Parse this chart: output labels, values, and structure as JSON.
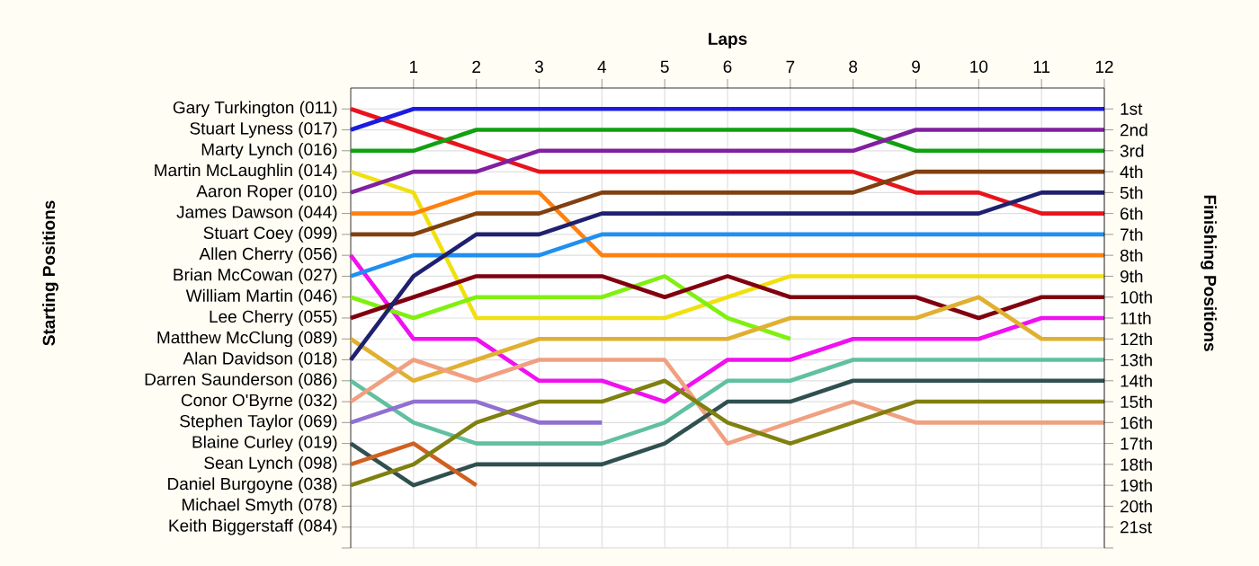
{
  "chart_data": {
    "type": "line",
    "xlabel": "Laps",
    "ylabel": "Finishing Positions",
    "xlim": [
      0,
      12
    ],
    "xticks": [
      1,
      2,
      3,
      4,
      5,
      6,
      7,
      8,
      9,
      10,
      11,
      12
    ],
    "ylim": [
      22,
      0
    ],
    "yticks": [
      {
        "value": 1,
        "label": "1st"
      },
      {
        "value": 2,
        "label": "2nd"
      },
      {
        "value": 3,
        "label": "3rd"
      },
      {
        "value": 4,
        "label": "4th"
      },
      {
        "value": 5,
        "label": "5th"
      },
      {
        "value": 6,
        "label": "6th"
      },
      {
        "value": 7,
        "label": "7th"
      },
      {
        "value": 8,
        "label": "8th"
      },
      {
        "value": 9,
        "label": "9th"
      },
      {
        "value": 10,
        "label": "10th"
      },
      {
        "value": 11,
        "label": "11th"
      },
      {
        "value": 12,
        "label": "12th"
      },
      {
        "value": 13,
        "label": "13th"
      },
      {
        "value": 14,
        "label": "14th"
      },
      {
        "value": 15,
        "label": "15th"
      },
      {
        "value": 16,
        "label": "16th"
      },
      {
        "value": 17,
        "label": "17th"
      },
      {
        "value": 18,
        "label": "18th"
      },
      {
        "value": 19,
        "label": "19th"
      },
      {
        "value": 20,
        "label": "20th"
      },
      {
        "value": 21,
        "label": "21st"
      },
      {
        "value": 22,
        "label": null
      }
    ],
    "x": [
      0,
      1,
      2,
      3,
      4,
      5,
      6,
      7,
      8,
      9,
      10,
      11,
      12
    ],
    "grid": true,
    "marker": "none",
    "line_style": "solid",
    "annotations": [
      "Starting Positions",
      "Michael Smyth (078)",
      "Keith Biggerstaff (084)"
    ],
    "series": [
      {
        "name": "Gary Turkington (011)",
        "color": "#e8141c",
        "values": [
          1,
          2,
          3,
          4,
          4,
          4,
          4,
          4,
          4,
          5,
          5,
          6,
          6
        ]
      },
      {
        "name": "Stuart Lyness (017)",
        "color": "#1c1ce0",
        "values": [
          2,
          1,
          1,
          1,
          1,
          1,
          1,
          1,
          1,
          1,
          1,
          1,
          1
        ]
      },
      {
        "name": "Marty Lynch (016)",
        "color": "#10a010",
        "values": [
          3,
          3,
          2,
          2,
          2,
          2,
          2,
          2,
          2,
          3,
          3,
          3,
          3
        ]
      },
      {
        "name": "Martin McLaughlin (014)",
        "color": "#f0e010",
        "values": [
          4,
          5,
          11,
          11,
          11,
          11,
          10,
          9,
          9,
          9,
          9,
          9,
          9
        ]
      },
      {
        "name": "Aaron Roper (010)",
        "color": "#8020a0",
        "values": [
          5,
          4,
          4,
          3,
          3,
          3,
          3,
          3,
          3,
          2,
          2,
          2,
          2
        ]
      },
      {
        "name": "James Dawson (044)",
        "color": "#ff8010",
        "values": [
          6,
          6,
          5,
          5,
          8,
          8,
          8,
          8,
          8,
          8,
          8,
          8,
          8
        ]
      },
      {
        "name": "Stuart Coey (099)",
        "color": "#804010",
        "values": [
          7,
          7,
          6,
          6,
          5,
          5,
          5,
          5,
          5,
          4,
          4,
          4,
          4
        ]
      },
      {
        "name": "Allen Cherry (056)",
        "color": "#f010f0",
        "values": [
          8,
          12,
          12,
          14,
          14,
          15,
          13,
          13,
          12,
          12,
          12,
          11,
          11
        ]
      },
      {
        "name": "Brian McCowan (027)",
        "color": "#2090f0",
        "values": [
          9,
          8,
          8,
          8,
          7,
          7,
          7,
          7,
          7,
          7,
          7,
          7,
          7
        ]
      },
      {
        "name": "William Martin (046)",
        "color": "#80f010",
        "values": [
          10,
          11,
          10,
          10,
          10,
          9,
          11,
          12,
          null,
          null,
          null,
          null,
          null
        ]
      },
      {
        "name": "Lee Cherry (055)",
        "color": "#800010",
        "values": [
          11,
          10,
          9,
          9,
          9,
          10,
          9,
          10,
          10,
          10,
          11,
          10,
          10
        ]
      },
      {
        "name": "Matthew McClung (089)",
        "color": "#e0b030",
        "values": [
          12,
          14,
          13,
          12,
          12,
          12,
          12,
          11,
          11,
          11,
          10,
          12,
          12
        ]
      },
      {
        "name": "Alan Davidson (018)",
        "color": "#202070",
        "values": [
          13,
          9,
          7,
          7,
          6,
          6,
          6,
          6,
          6,
          6,
          6,
          5,
          5
        ]
      },
      {
        "name": "Darren Saunderson (086)",
        "color": "#60c0a0",
        "values": [
          14,
          16,
          17,
          17,
          17,
          16,
          14,
          14,
          13,
          13,
          13,
          13,
          13
        ]
      },
      {
        "name": "Conor O'Byrne (032)",
        "color": "#f0a080",
        "values": [
          15,
          13,
          14,
          13,
          13,
          13,
          17,
          16,
          15,
          16,
          16,
          16,
          16
        ]
      },
      {
        "name": "Stephen Taylor (069)",
        "color": "#9070d0",
        "values": [
          16,
          15,
          15,
          16,
          16,
          null,
          null,
          null,
          null,
          null,
          null,
          null,
          null
        ]
      },
      {
        "name": "Blaine Curley (019)",
        "color": "#305050",
        "values": [
          17,
          19,
          18,
          18,
          18,
          17,
          15,
          15,
          14,
          14,
          14,
          14,
          14
        ]
      },
      {
        "name": "Sean Lynch (098)",
        "color": "#d06020",
        "values": [
          18,
          17,
          19,
          null,
          null,
          null,
          null,
          null,
          null,
          null,
          null,
          null,
          null
        ]
      },
      {
        "name": "Daniel Burgoyne (038)",
        "color": "#808010",
        "values": [
          19,
          18,
          16,
          15,
          15,
          14,
          16,
          17,
          16,
          15,
          15,
          15,
          15
        ]
      }
    ]
  }
}
